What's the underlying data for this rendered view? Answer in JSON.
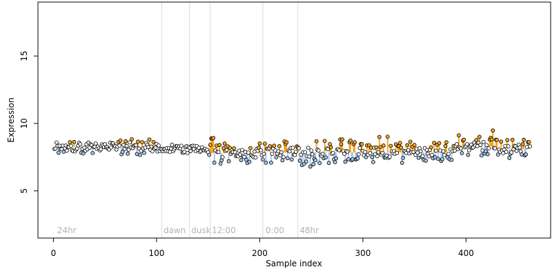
{
  "chart_data": {
    "type": "scatter",
    "xlabel": "Sample index",
    "ylabel": "Expression",
    "xlim": [
      -15,
      482
    ],
    "ylim": [
      1.5,
      19
    ],
    "x_ticks": [
      0,
      100,
      200,
      300,
      400
    ],
    "y_ticks": [
      5,
      10,
      15
    ],
    "grid": false,
    "colors": {
      "high": "#F5A623",
      "low": "#A6C8EA",
      "mid": "#ffffff",
      "outline": "#000000",
      "divider": "#d9d9d9",
      "label": "#b3b3b3"
    },
    "condition_labels": [
      {
        "text": "24hr",
        "x": 3
      },
      {
        "text": "dawn",
        "x": 106
      },
      {
        "text": "dusk",
        "x": 133
      },
      {
        "text": "12:00",
        "x": 153
      },
      {
        "text": "0:00",
        "x": 205
      },
      {
        "text": "48hr",
        "x": 238
      }
    ],
    "dividers": [
      105,
      132,
      152,
      203,
      237
    ],
    "group_means": [
      {
        "x": [
          0,
          105
        ],
        "y": 8.25
      },
      {
        "x": [
          105,
          132
        ],
        "y": 8.1
      },
      {
        "x": [
          132,
          152
        ],
        "y": 8.15
      },
      {
        "x": [
          152,
          203
        ],
        "y": 7.8
      },
      {
        "x": [
          203,
          237
        ],
        "y": 7.85
      },
      {
        "x": [
          237,
          390
        ],
        "y": 7.85
      },
      {
        "x": [
          390,
          430
        ],
        "y": 8.3
      },
      {
        "x": [
          430,
          462
        ],
        "y": 8.1
      }
    ],
    "n_points": 462,
    "segments": [
      {
        "from": 0,
        "to": 80,
        "base": 8.25,
        "spread": 0.5
      },
      {
        "from": 80,
        "to": 105,
        "base": 8.2,
        "spread": 0.6
      },
      {
        "from": 105,
        "to": 132,
        "base": 8.1,
        "spread": 0.35
      },
      {
        "from": 132,
        "to": 152,
        "base": 8.15,
        "spread": 0.45
      },
      {
        "from": 152,
        "to": 155,
        "base": 8.9,
        "spread": 0.05
      },
      {
        "from": 155,
        "to": 203,
        "base": 7.8,
        "spread": 0.8
      },
      {
        "from": 203,
        "to": 237,
        "base": 7.9,
        "spread": 0.9
      },
      {
        "from": 237,
        "to": 265,
        "base": 7.6,
        "spread": 1.0
      },
      {
        "from": 265,
        "to": 390,
        "base": 7.9,
        "spread": 0.9
      },
      {
        "from": 390,
        "to": 430,
        "base": 8.5,
        "spread": 0.8
      },
      {
        "from": 430,
        "to": 462,
        "base": 8.1,
        "spread": 0.6
      }
    ]
  }
}
